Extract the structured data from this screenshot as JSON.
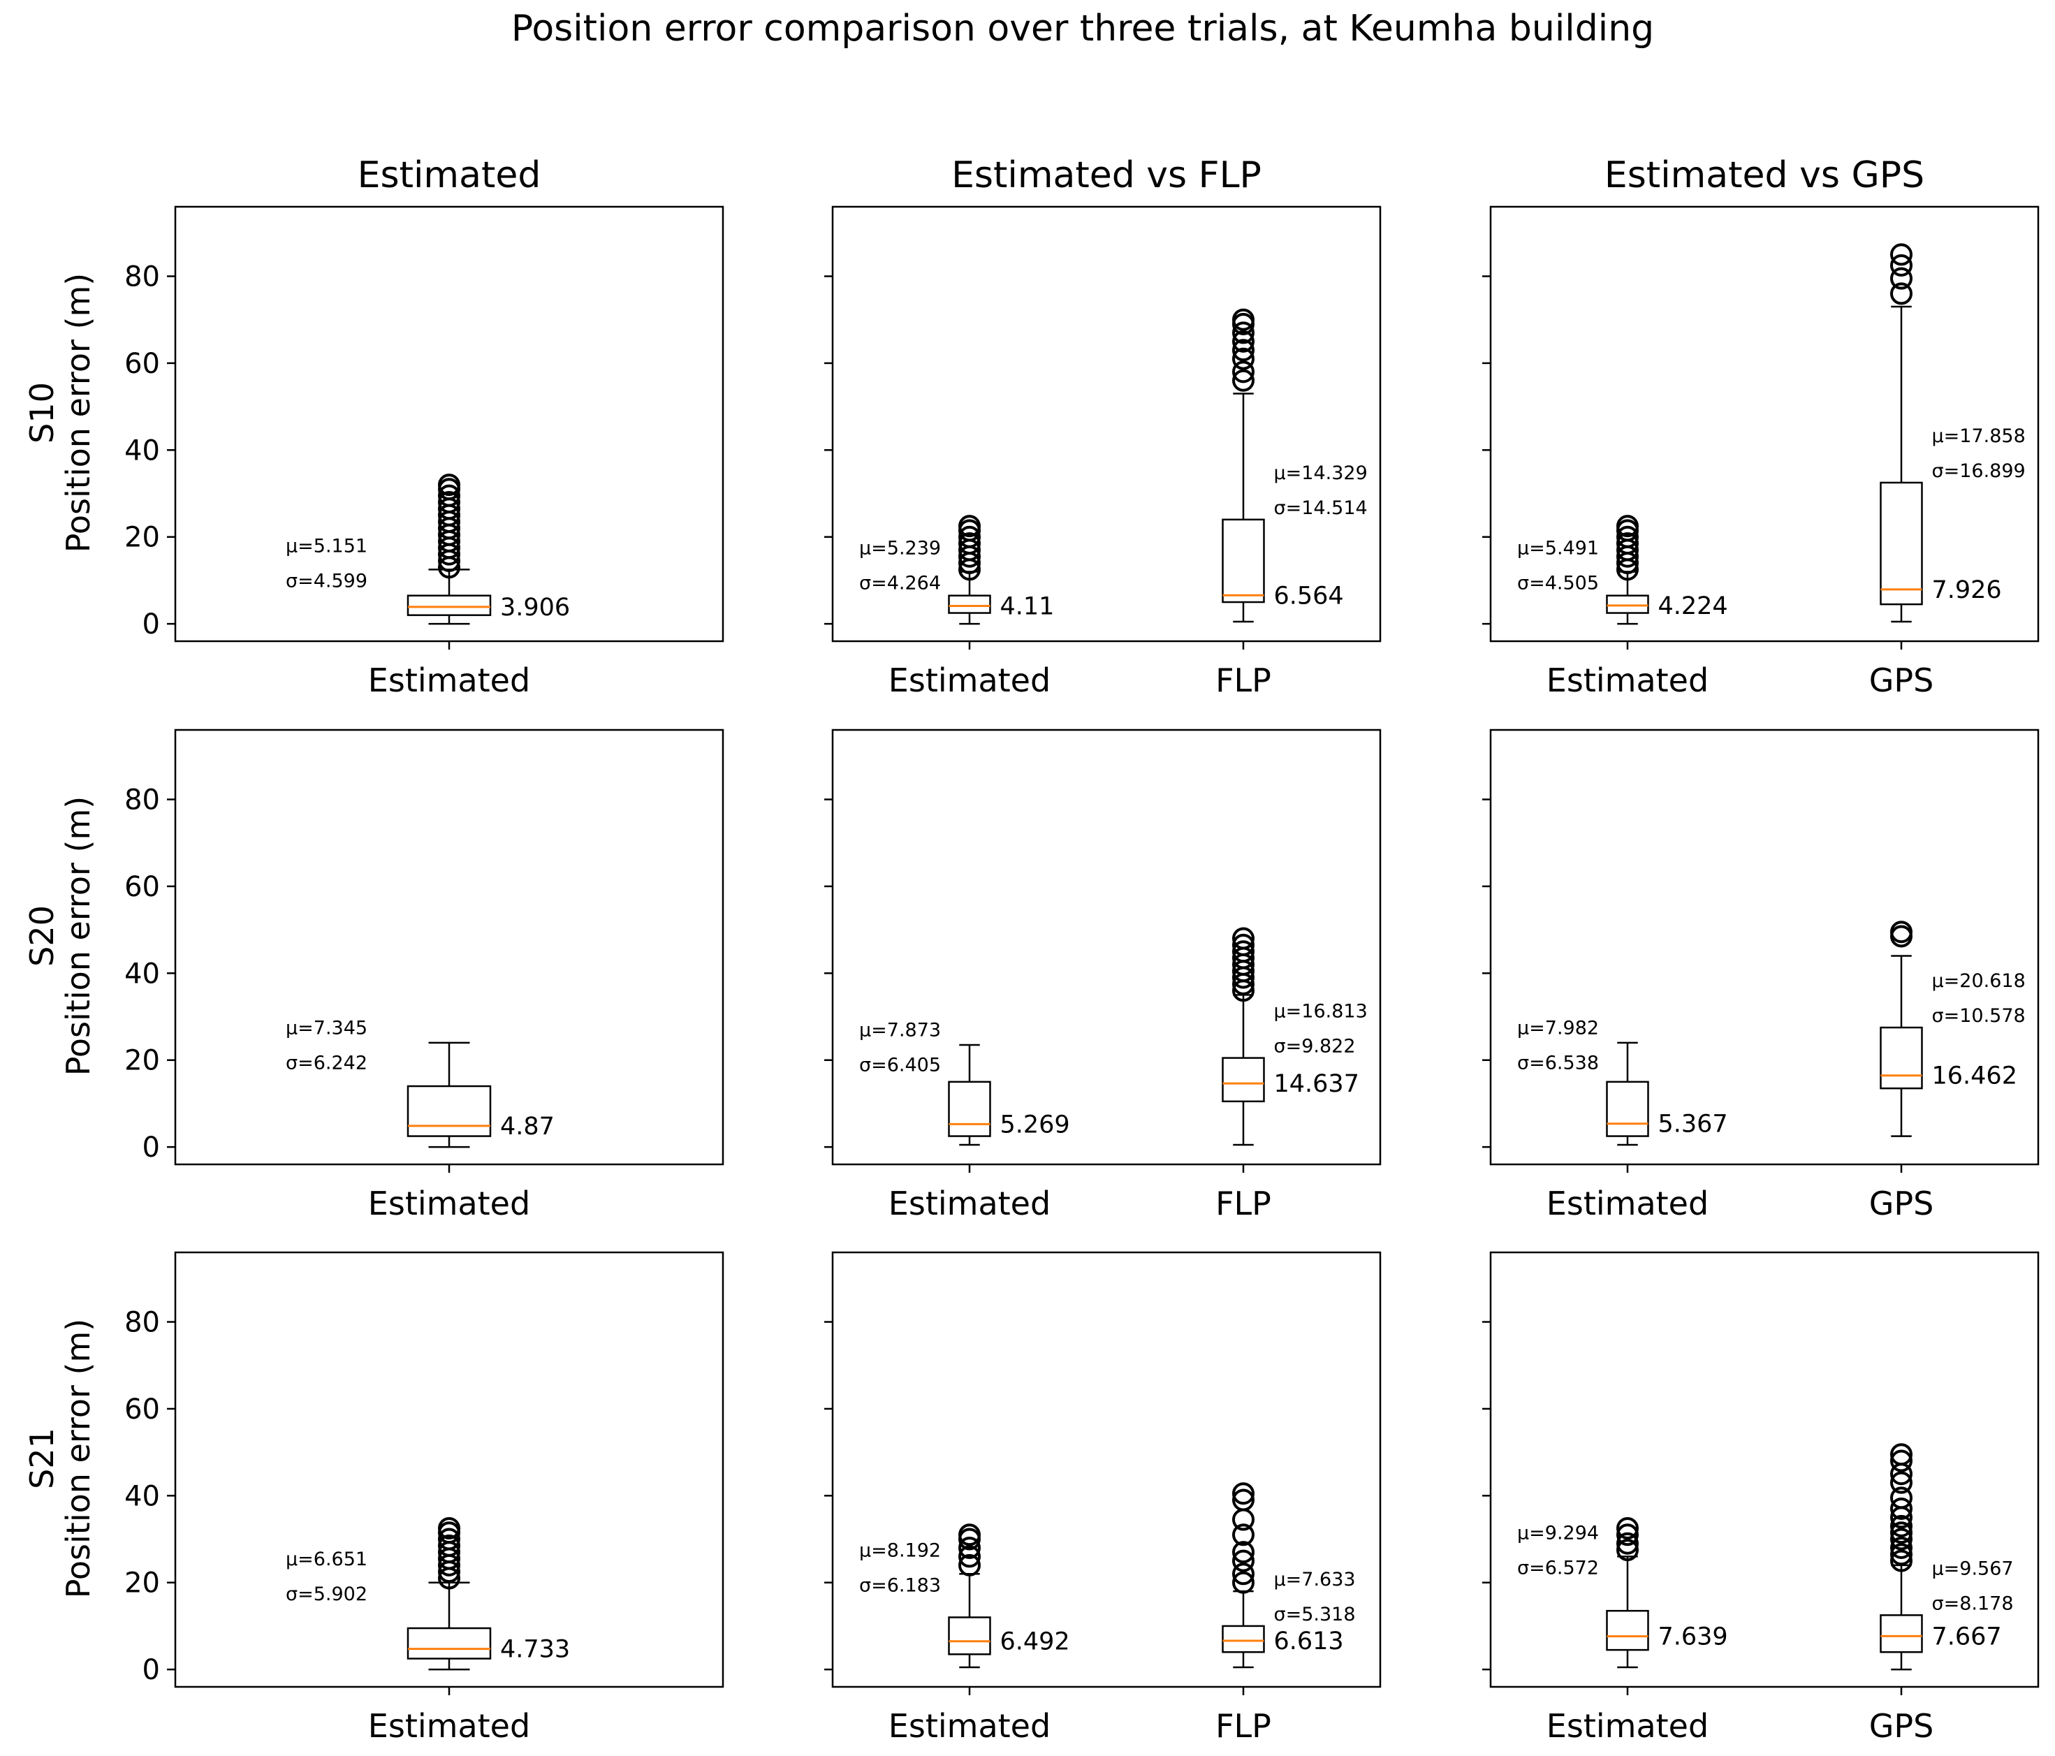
{
  "chart_data": {
    "type": "boxplot",
    "title": "Position error comparison over three trials, at Keumha building",
    "column_titles": [
      "Estimated",
      "Estimated vs FLP",
      "Estimated vs GPS"
    ],
    "row_labels": [
      "S10",
      "S20",
      "S21"
    ],
    "ylabel": "Position error (m)",
    "ylim": [
      -4,
      96
    ],
    "yticks": [
      0,
      20,
      40,
      60,
      80
    ],
    "rows": [
      {
        "device": "S10",
        "panels": [
          {
            "column": "Estimated",
            "boxes": [
              {
                "label": "Estimated",
                "q1": 2,
                "median": 3.906,
                "q3": 6.5,
                "whisker_low": 0,
                "whisker_high": 12.5,
                "outliers": [
                  13,
                  14.5,
                  16,
                  17.5,
                  19,
                  20.5,
                  22,
                  23.5,
                  25,
                  26.5,
                  28,
                  29.5,
                  31,
                  32
                ],
                "median_label": "3.906",
                "mu_label": "μ=5.151",
                "sigma_label": "σ=4.599"
              }
            ]
          },
          {
            "column": "Estimated vs FLP",
            "boxes": [
              {
                "label": "Estimated",
                "q1": 2.5,
                "median": 4.11,
                "q3": 6.5,
                "whisker_low": 0,
                "whisker_high": 12,
                "outliers": [
                  12.5,
                  14,
                  15.5,
                  17,
                  18.5,
                  20,
                  21.5,
                  22.5
                ],
                "median_label": "4.11",
                "mu_label": "μ=5.239",
                "sigma_label": "σ=4.264"
              },
              {
                "label": "FLP",
                "q1": 5,
                "median": 6.564,
                "q3": 24,
                "whisker_low": 0.5,
                "whisker_high": 53,
                "outliers": [
                  56,
                  58,
                  61,
                  63,
                  65,
                  67,
                  69,
                  70
                ],
                "median_label": "6.564",
                "mu_label": "μ=14.329",
                "sigma_label": "σ=14.514"
              }
            ]
          },
          {
            "column": "Estimated vs GPS",
            "boxes": [
              {
                "label": "Estimated",
                "q1": 2.5,
                "median": 4.224,
                "q3": 6.5,
                "whisker_low": 0,
                "whisker_high": 12,
                "outliers": [
                  12.5,
                  14,
                  15.5,
                  17,
                  18.5,
                  20,
                  21.5,
                  22.5
                ],
                "median_label": "4.224",
                "mu_label": "μ=5.491",
                "sigma_label": "σ=4.505"
              },
              {
                "label": "GPS",
                "q1": 4.5,
                "median": 7.926,
                "q3": 32.5,
                "whisker_low": 0.5,
                "whisker_high": 73,
                "outliers": [
                  76,
                  79.5,
                  82.5,
                  85
                ],
                "median_label": "7.926",
                "mu_label": "μ=17.858",
                "sigma_label": "σ=16.899"
              }
            ]
          }
        ]
      },
      {
        "device": "S20",
        "panels": [
          {
            "column": "Estimated",
            "boxes": [
              {
                "label": "Estimated",
                "q1": 2.5,
                "median": 4.87,
                "q3": 14,
                "whisker_low": 0,
                "whisker_high": 24,
                "outliers": [],
                "median_label": "4.87",
                "mu_label": "μ=7.345",
                "sigma_label": "σ=6.242"
              }
            ]
          },
          {
            "column": "Estimated vs FLP",
            "boxes": [
              {
                "label": "Estimated",
                "q1": 2.5,
                "median": 5.269,
                "q3": 15,
                "whisker_low": 0.5,
                "whisker_high": 23.5,
                "outliers": [],
                "median_label": "5.269",
                "mu_label": "μ=7.873",
                "sigma_label": "σ=6.405"
              },
              {
                "label": "FLP",
                "q1": 10.5,
                "median": 14.637,
                "q3": 20.5,
                "whisker_low": 0.5,
                "whisker_high": 35,
                "outliers": [
                  36,
                  37.5,
                  39,
                  40.5,
                  42,
                  43.5,
                  45,
                  46.5,
                  48
                ],
                "median_label": "14.637",
                "mu_label": "μ=16.813",
                "sigma_label": "σ=9.822"
              }
            ]
          },
          {
            "column": "Estimated vs GPS",
            "boxes": [
              {
                "label": "Estimated",
                "q1": 2.5,
                "median": 5.367,
                "q3": 15,
                "whisker_low": 0.5,
                "whisker_high": 24,
                "outliers": [],
                "median_label": "5.367",
                "mu_label": "μ=7.982",
                "sigma_label": "σ=6.538"
              },
              {
                "label": "GPS",
                "q1": 13.5,
                "median": 16.462,
                "q3": 27.5,
                "whisker_low": 2.5,
                "whisker_high": 44,
                "outliers": [
                  48.5,
                  49.5
                ],
                "median_label": "16.462",
                "mu_label": "μ=20.618",
                "sigma_label": "σ=10.578"
              }
            ]
          }
        ]
      },
      {
        "device": "S21",
        "panels": [
          {
            "column": "Estimated",
            "boxes": [
              {
                "label": "Estimated",
                "q1": 2.5,
                "median": 4.733,
                "q3": 9.5,
                "whisker_low": 0,
                "whisker_high": 20,
                "outliers": [
                  21,
                  22.5,
                  24,
                  25.5,
                  27,
                  28.5,
                  30,
                  31.5,
                  32.5
                ],
                "median_label": "4.733",
                "mu_label": "μ=6.651",
                "sigma_label": "σ=5.902"
              }
            ]
          },
          {
            "column": "Estimated vs FLP",
            "boxes": [
              {
                "label": "Estimated",
                "q1": 3.5,
                "median": 6.492,
                "q3": 12,
                "whisker_low": 0.5,
                "whisker_high": 22,
                "outliers": [
                  24,
                  26,
                  28,
                  30,
                  31
                ],
                "median_label": "6.492",
                "mu_label": "μ=8.192",
                "sigma_label": "σ=6.183"
              },
              {
                "label": "FLP",
                "q1": 4,
                "median": 6.613,
                "q3": 10,
                "whisker_low": 0.5,
                "whisker_high": 18,
                "outliers": [
                  20,
                  22,
                  25,
                  27,
                  31,
                  34.5,
                  39,
                  40.5
                ],
                "median_label": "6.613",
                "mu_label": "μ=7.633",
                "sigma_label": "σ=5.318"
              }
            ]
          },
          {
            "column": "Estimated vs GPS",
            "boxes": [
              {
                "label": "Estimated",
                "q1": 4.5,
                "median": 7.639,
                "q3": 13.5,
                "whisker_low": 0.5,
                "whisker_high": 26,
                "outliers": [
                  27.5,
                  29,
                  31,
                  32.5
                ],
                "median_label": "7.639",
                "mu_label": "μ=9.294",
                "sigma_label": "σ=6.572"
              },
              {
                "label": "GPS",
                "q1": 4,
                "median": 7.667,
                "q3": 12.5,
                "whisker_low": 0,
                "whisker_high": 24,
                "outliers": [
                  25,
                  26.5,
                  28,
                  30,
                  31.5,
                  33,
                  35,
                  37,
                  39.5,
                  43,
                  45,
                  48,
                  49.5
                ],
                "median_label": "7.667",
                "mu_label": "μ=9.567",
                "sigma_label": "σ=8.178"
              }
            ]
          }
        ]
      }
    ]
  },
  "colors": {
    "median": "#ff7f0e",
    "box": "#000000",
    "background": "#ffffff"
  }
}
